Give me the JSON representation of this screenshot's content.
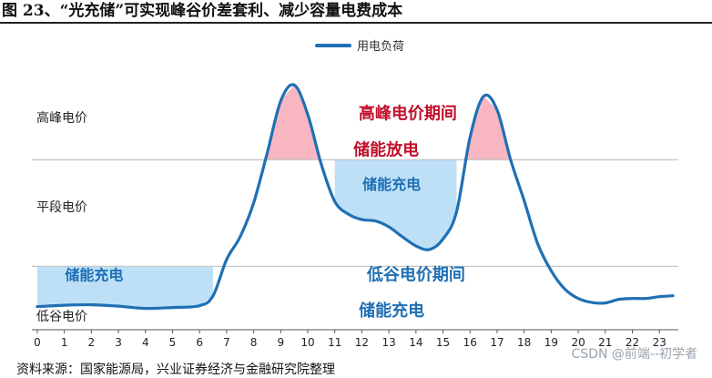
{
  "title": "图 23、“光充储”可实现峰谷价差套利、减少容量电费成本",
  "source": "资料来源：国家能源局，兴业证券经济与金融研究院整理",
  "watermark": "CSDN @前端--初学者",
  "chart_data": {
    "type": "line",
    "series": [
      {
        "name": "用电负荷",
        "color": "#1f6fb4",
        "x": [
          0,
          1,
          2,
          3,
          4,
          5,
          6,
          6.5,
          7,
          7.5,
          8,
          8.5,
          9,
          9.5,
          10,
          10.5,
          11,
          11.5,
          12,
          12.5,
          13,
          13.5,
          14,
          14.5,
          15,
          15.5,
          16,
          16.5,
          17,
          17.5,
          18,
          18.5,
          19,
          19.5,
          20,
          20.5,
          21,
          21.5,
          22,
          22.5,
          23,
          23.5
        ],
        "y": [
          6,
          9,
          10,
          7,
          2,
          4,
          8,
          30,
          110,
          160,
          235,
          345,
          460,
          495,
          430,
          320,
          238,
          210,
          198,
          195,
          182,
          160,
          140,
          132,
          155,
          215,
          380,
          470,
          440,
          330,
          240,
          145,
          85,
          45,
          24,
          15,
          14,
          22,
          24,
          24,
          28,
          30
        ]
      }
    ],
    "bands": {
      "peak_level": 330,
      "flat_level": 95,
      "peak_windows": [
        [
          8.5,
          11
        ],
        [
          15.5,
          18
        ]
      ],
      "charge_windows": [
        [
          0,
          6.5
        ],
        [
          11,
          15.5
        ]
      ]
    },
    "row_labels": [
      "高峰电价",
      "平段电价",
      "低谷电价"
    ],
    "annotations": [
      {
        "text": "高峰电价期间",
        "x": 13.7,
        "y": 420,
        "style": "red"
      },
      {
        "text": "储能放电",
        "x": 12.9,
        "y": 340,
        "style": "red"
      },
      {
        "text": "储能充电",
        "x": 13.1,
        "y": 265,
        "style": "blue"
      },
      {
        "text": "储能充电",
        "x": 2.1,
        "y": 65,
        "style": "blue"
      },
      {
        "text": "低谷电价期间",
        "x": 14.0,
        "y": 65,
        "style": "blue-lg"
      },
      {
        "text": "储能充电",
        "x": 13.1,
        "y": -15,
        "style": "blue-lg"
      }
    ],
    "x_ticks": [
      "0",
      "1",
      "2",
      "3",
      "4",
      "5",
      "6",
      "7",
      "8",
      "9",
      "10",
      "11",
      "12",
      "13",
      "14",
      "15",
      "16",
      "17",
      "18",
      "19",
      "20",
      "21",
      "22",
      "23"
    ],
    "xlim": [
      -0.2,
      23.7
    ],
    "ylim": [
      -45,
      560
    ],
    "legend": "top-center",
    "grid": false
  }
}
